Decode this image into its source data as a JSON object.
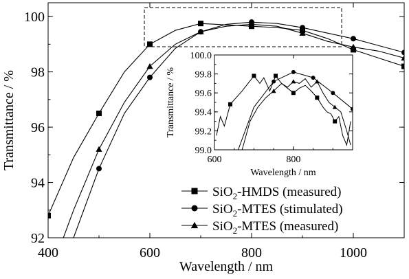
{
  "chart_data": [
    {
      "type": "line",
      "xlabel": "Wavelength / nm",
      "ylabel": "Transmittance / %",
      "xlim": [
        400,
        1100
      ],
      "ylim": [
        92,
        100.5
      ],
      "x_ticks": [
        "400",
        "600",
        "800",
        "1000"
      ],
      "y_ticks": [
        "92",
        "94",
        "96",
        "98",
        "100"
      ],
      "legend": {
        "position": "bottom-right",
        "entries": [
          {
            "base": "SiO",
            "sub": "2",
            "rest": "-HMDS (measured)",
            "marker": "square"
          },
          {
            "base": "SiO",
            "sub": "2",
            "rest": "-MTES (stimulated)",
            "marker": "circle"
          },
          {
            "base": "SiO",
            "sub": "2",
            "rest": "-MTES (measured)",
            "marker": "triangle"
          }
        ]
      },
      "series": [
        {
          "marker": "square",
          "x": [
            400,
            450,
            500,
            550,
            600,
            650,
            700,
            750,
            800,
            850,
            900,
            950,
            1000,
            1050,
            1100
          ],
          "y": [
            92.8,
            94.9,
            96.5,
            98.0,
            99.0,
            99.5,
            99.75,
            99.7,
            99.65,
            99.6,
            99.5,
            99.2,
            98.8,
            98.5,
            98.2
          ],
          "marker_x": [
            400,
            500,
            600,
            700,
            800,
            900,
            1000,
            1100
          ]
        },
        {
          "marker": "circle",
          "x": [
            450,
            500,
            550,
            600,
            650,
            700,
            750,
            800,
            850,
            900,
            950,
            1000,
            1050,
            1100
          ],
          "y": [
            92.0,
            94.5,
            96.5,
            97.8,
            98.85,
            99.45,
            99.72,
            99.8,
            99.75,
            99.6,
            99.4,
            99.2,
            98.95,
            98.7
          ],
          "marker_x": [
            500,
            600,
            700,
            800,
            900,
            1000,
            1100
          ]
        },
        {
          "marker": "triangle",
          "x": [
            430,
            450,
            500,
            550,
            600,
            650,
            700,
            750,
            800,
            850,
            900,
            950,
            1000,
            1050,
            1100
          ],
          "y": [
            92.0,
            93.0,
            95.2,
            96.9,
            98.2,
            99.0,
            99.45,
            99.65,
            99.72,
            99.65,
            99.4,
            99.1,
            98.9,
            98.75,
            98.5
          ],
          "marker_x": [
            500,
            600,
            700,
            800,
            900,
            1000,
            1100
          ]
        }
      ]
    },
    {
      "type": "line",
      "xlabel": "Wavelength / nm",
      "ylabel": "Transmittance / %",
      "xlim": [
        600,
        950
      ],
      "ylim": [
        99.0,
        100.0
      ],
      "x_ticks": [
        "600",
        "800"
      ],
      "y_ticks": [
        "99.0",
        "99.2",
        "99.4",
        "99.6",
        "99.8",
        "100.0"
      ],
      "series": [
        {
          "marker": "square",
          "x": [
            605,
            615,
            625,
            640,
            655,
            670,
            685,
            700,
            715,
            725,
            740,
            755,
            770,
            785,
            800,
            815,
            830,
            845,
            860,
            875,
            885,
            895,
            905,
            915,
            925,
            935,
            945
          ],
          "y": [
            99.15,
            99.35,
            99.25,
            99.48,
            99.55,
            99.62,
            99.7,
            99.78,
            99.7,
            99.76,
            99.62,
            99.78,
            99.7,
            99.65,
            99.6,
            99.65,
            99.68,
            99.62,
            99.55,
            99.45,
            99.4,
            99.38,
            99.3,
            99.35,
            99.15,
            99.05,
            99.3
          ],
          "marker_x": [
            640,
            700,
            755,
            800,
            860,
            905
          ]
        },
        {
          "marker": "circle",
          "x": [
            660,
            700,
            750,
            800,
            850,
            900,
            950
          ],
          "y": [
            99.0,
            99.45,
            99.72,
            99.82,
            99.76,
            99.6,
            99.43
          ],
          "marker_x": [
            750,
            800,
            850,
            900,
            950
          ]
        },
        {
          "marker": "triangle",
          "x": [
            670,
            690,
            710,
            730,
            750,
            770,
            785,
            800,
            815,
            830,
            845,
            860,
            875,
            890,
            905,
            920,
            935,
            945
          ],
          "y": [
            99.0,
            99.3,
            99.45,
            99.55,
            99.62,
            99.7,
            99.66,
            99.72,
            99.7,
            99.75,
            99.66,
            99.72,
            99.6,
            99.5,
            99.45,
            99.4,
            99.2,
            99.05
          ],
          "marker_x": [
            750,
            800,
            860,
            905
          ]
        }
      ]
    }
  ]
}
